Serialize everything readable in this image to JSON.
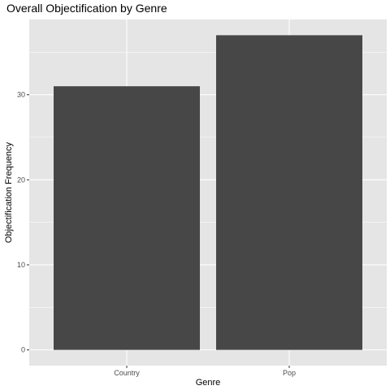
{
  "chart_data": {
    "type": "bar",
    "title": "Overall Objectification by Genre",
    "xlabel": "Genre",
    "ylabel": "Objectification Frequency",
    "categories": [
      "Country",
      "Pop"
    ],
    "values": [
      31,
      37
    ],
    "ylim": [
      -1.85,
      38.85
    ],
    "yticks": [
      0,
      10,
      20,
      30
    ],
    "ytick_labels": [
      "0",
      "10",
      "20",
      "30"
    ],
    "grid": true,
    "legend": "none",
    "colors": {
      "bar": "#474747",
      "panel_bg": "#e5e5e5",
      "grid": "#ffffff",
      "tick_text": "#4d4d4d"
    }
  }
}
